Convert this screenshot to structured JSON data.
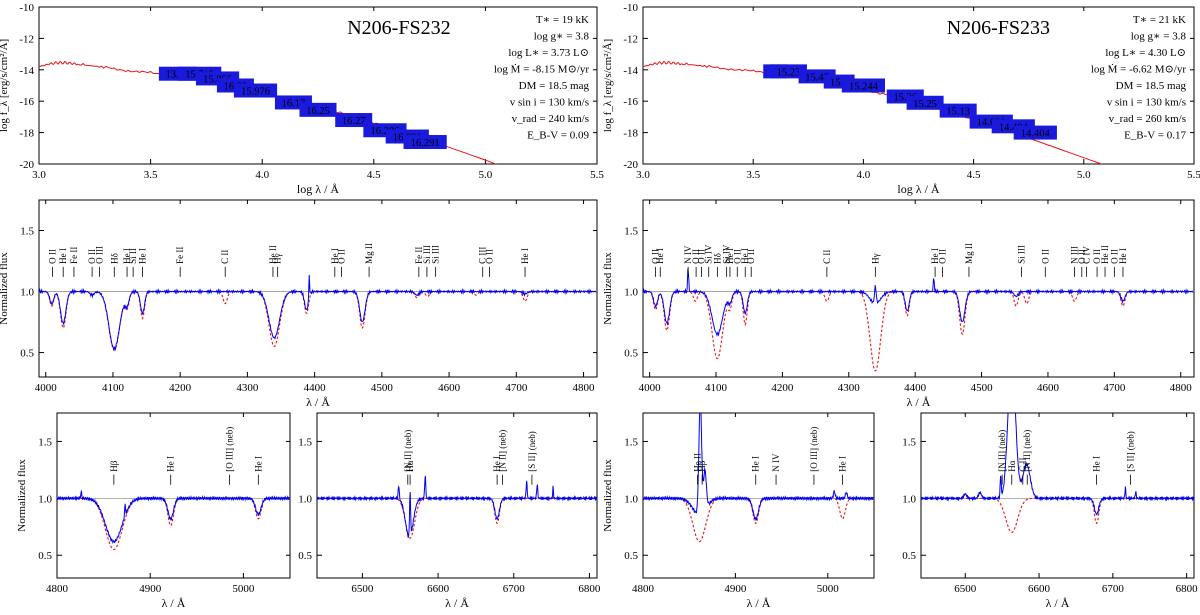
{
  "colors": {
    "observed": "#0000ee",
    "model": "#e8141a",
    "frame": "#000000",
    "unit_line": "#999999",
    "badge_fill": "#1a1adc",
    "badge_text": "#ffffff"
  },
  "chart_data": [
    {
      "id": "sed-fs232",
      "type": "line",
      "title": "N206-FS232",
      "xlabel": "log λ / Å",
      "ylabel": "log f_λ [erg/s/cm²/Å]",
      "xlim": [
        3.0,
        5.5
      ],
      "ylim": [
        -20,
        -10
      ],
      "xticks": [
        3.0,
        3.5,
        4.0,
        4.5,
        5.0,
        5.5
      ],
      "yticks": [
        -20,
        -18,
        -16,
        -14,
        -12,
        -10
      ],
      "params": [
        "T∗ = 19 kK",
        "log g∗ = 3.8",
        "log L∗ = 3.73 L⊙",
        "log Ṁ = -8.15 M⊙/yr",
        "DM = 18.5 mag",
        "v sin i = 130 km/s",
        "v_rad = 240 km/s",
        "E_B-V = 0.09"
      ],
      "model_sed": [
        [
          3.0,
          -13.8
        ],
        [
          3.04,
          -13.65
        ],
        [
          3.08,
          -13.55
        ],
        [
          3.12,
          -13.55
        ],
        [
          3.16,
          -13.62
        ],
        [
          3.22,
          -13.72
        ],
        [
          3.3,
          -13.85
        ],
        [
          3.4,
          -14.05
        ],
        [
          3.5,
          -14.2
        ],
        [
          3.6,
          -14.45
        ],
        [
          3.7,
          -14.68
        ],
        [
          3.8,
          -14.95
        ],
        [
          3.9,
          -15.22
        ],
        [
          4.0,
          -15.55
        ],
        [
          4.1,
          -15.85
        ],
        [
          4.2,
          -16.2
        ],
        [
          4.3,
          -16.55
        ],
        [
          4.4,
          -16.95
        ],
        [
          4.5,
          -17.35
        ],
        [
          4.6,
          -17.8
        ],
        [
          4.7,
          -18.25
        ],
        [
          4.8,
          -18.75
        ],
        [
          4.9,
          -19.25
        ],
        [
          5.0,
          -19.75
        ],
        [
          5.1,
          -20.3
        ]
      ],
      "photometry": [
        {
          "logl": 3.62,
          "val": -14.25,
          "label": "13.73"
        },
        {
          "logl": 3.72,
          "val": -14.25,
          "label": "15.715"
        },
        {
          "logl": 3.8,
          "val": -14.55,
          "label": "15.855"
        },
        {
          "logl": 3.88,
          "val": -15.0,
          "label": "16.22"
        },
        {
          "logl": 3.97,
          "val": -15.32,
          "label": "15.976"
        },
        {
          "logl": 4.14,
          "val": -16.08,
          "label": "16.17"
        },
        {
          "logl": 4.25,
          "val": -16.55,
          "label": "16.25"
        },
        {
          "logl": 4.41,
          "val": -17.2,
          "label": "16.27"
        },
        {
          "logl": 4.55,
          "val": -17.85,
          "label": "16.286"
        },
        {
          "logl": 4.65,
          "val": -18.25,
          "label": "16.291"
        },
        {
          "logl": 4.73,
          "val": -18.6,
          "label": "16.291"
        }
      ]
    },
    {
      "id": "sed-fs233",
      "type": "line",
      "title": "N206-FS233",
      "xlabel": "log λ / Å",
      "ylabel": "log f_λ [erg/s/cm²/Å]",
      "xlim": [
        3.0,
        5.5
      ],
      "ylim": [
        -20,
        -10
      ],
      "xticks": [
        3.0,
        3.5,
        4.0,
        4.5,
        5.0,
        5.5
      ],
      "yticks": [
        -20,
        -18,
        -16,
        -14,
        -12,
        -10
      ],
      "params": [
        "T∗ = 21 kK",
        "log g∗ = 3.8",
        "log L∗ = 4.30 L⊙",
        "log Ṁ = -6.62 M⊙/yr",
        "DM = 18.5 mag",
        "v sin i = 130 km/s",
        "v_rad = 260 km/s",
        "E_B-V = 0.17"
      ],
      "model_sed": [
        [
          3.0,
          -13.8
        ],
        [
          3.04,
          -13.65
        ],
        [
          3.08,
          -13.55
        ],
        [
          3.12,
          -13.55
        ],
        [
          3.16,
          -13.6
        ],
        [
          3.22,
          -13.68
        ],
        [
          3.3,
          -13.8
        ],
        [
          3.4,
          -13.95
        ],
        [
          3.5,
          -14.1
        ],
        [
          3.6,
          -14.28
        ],
        [
          3.7,
          -14.45
        ],
        [
          3.8,
          -14.68
        ],
        [
          3.9,
          -14.95
        ],
        [
          4.0,
          -15.25
        ],
        [
          4.1,
          -15.55
        ],
        [
          4.2,
          -15.9
        ],
        [
          4.3,
          -16.3
        ],
        [
          4.4,
          -16.7
        ],
        [
          4.5,
          -17.15
        ],
        [
          4.6,
          -17.6
        ],
        [
          4.7,
          -18.1
        ],
        [
          4.8,
          -18.6
        ],
        [
          4.9,
          -19.1
        ],
        [
          5.0,
          -19.6
        ],
        [
          5.1,
          -20.1
        ],
        [
          5.2,
          -20.6
        ]
      ],
      "photometry": [
        {
          "logl": 3.6,
          "val": -14.1,
          "label": "14"
        },
        {
          "logl": 3.66,
          "val": -14.1,
          "label": "15.23"
        },
        {
          "logl": 3.79,
          "val": -14.42,
          "label": "15.45"
        },
        {
          "logl": 3.89,
          "val": -14.75,
          "label": "15.5"
        },
        {
          "logl": 4.0,
          "val": -15.0,
          "label": "15.244"
        },
        {
          "logl": 4.19,
          "val": -15.7,
          "label": "15.26"
        },
        {
          "logl": 4.28,
          "val": -16.1,
          "label": "15.25"
        },
        {
          "logl": 4.43,
          "val": -16.6,
          "label": "15.13"
        },
        {
          "logl": 4.58,
          "val": -17.3,
          "label": "14.631"
        },
        {
          "logl": 4.68,
          "val": -17.6,
          "label": "14.404"
        },
        {
          "logl": 4.78,
          "val": -18.0,
          "label": "14.404"
        }
      ]
    },
    {
      "id": "blue-fs232",
      "type": "line",
      "xlabel": "λ / Å",
      "ylabel": "Normalized flux",
      "xlim": [
        3990,
        4820
      ],
      "ylim": [
        0.3,
        1.75
      ],
      "xticks": [
        4000,
        4100,
        4200,
        4300,
        4400,
        4500,
        4600,
        4700,
        4800
      ],
      "yticks": [
        0.5,
        1.0,
        1.5
      ],
      "lines_model": [
        [
          4009,
          0.12,
          3
        ],
        [
          4026,
          0.3,
          4
        ],
        [
          4069,
          0.03,
          3
        ],
        [
          4102,
          0.48,
          8
        ],
        [
          4121,
          0.12,
          3
        ],
        [
          4144,
          0.22,
          3
        ],
        [
          4267,
          0.1,
          3
        ],
        [
          4340,
          0.45,
          8
        ],
        [
          4388,
          0.18,
          3
        ],
        [
          4471,
          0.3,
          4
        ],
        [
          4552,
          0.05,
          3
        ],
        [
          4568,
          0.04,
          3
        ],
        [
          4640,
          0.03,
          3
        ],
        [
          4713,
          0.08,
          3
        ]
      ],
      "lines_obs": [
        [
          4009,
          0.1,
          3
        ],
        [
          4026,
          0.26,
          4
        ],
        [
          4069,
          0.03,
          3
        ],
        [
          4102,
          0.47,
          8
        ],
        [
          4121,
          0.1,
          3
        ],
        [
          4144,
          0.18,
          3
        ],
        [
          4340,
          0.38,
          8
        ],
        [
          4388,
          0.15,
          3
        ],
        [
          4471,
          0.25,
          4
        ],
        [
          4552,
          0.03,
          3
        ],
        [
          4713,
          0.02,
          3
        ]
      ],
      "emission_obs": [
        [
          4392,
          0.2,
          0.6
        ]
      ],
      "ids": [
        {
          "x": 4010,
          "t": "O II"
        },
        {
          "x": 4026,
          "t": "He I"
        },
        {
          "x": 4042,
          "t": "Fe II"
        },
        {
          "x": 4069,
          "t": "O II"
        },
        {
          "x": 4080,
          "t": "O III"
        },
        {
          "x": 4102,
          "t": "Hδ"
        },
        {
          "x": 4121,
          "t": "He I"
        },
        {
          "x": 4130,
          "t": "Si II"
        },
        {
          "x": 4144,
          "t": "He I"
        },
        {
          "x": 4200,
          "t": "Fe II"
        },
        {
          "x": 4267,
          "t": "C II"
        },
        {
          "x": 4338,
          "t": "He II"
        },
        {
          "x": 4345,
          "t": "Hγ"
        },
        {
          "x": 4430,
          "t": "He I"
        },
        {
          "x": 4440,
          "t": "O II"
        },
        {
          "x": 4481,
          "t": "Mg II"
        },
        {
          "x": 4555,
          "t": "Fe II"
        },
        {
          "x": 4567,
          "t": "Si III"
        },
        {
          "x": 4580,
          "t": "Si III"
        },
        {
          "x": 4650,
          "t": "C III"
        },
        {
          "x": 4660,
          "t": "O II"
        },
        {
          "x": 4713,
          "t": "He I"
        }
      ]
    },
    {
      "id": "blue-fs233",
      "type": "line",
      "xlabel": "λ / Å",
      "ylabel": "Normalized flux",
      "xlim": [
        3990,
        4820
      ],
      "ylim": [
        0.3,
        1.75
      ],
      "xticks": [
        4000,
        4100,
        4200,
        4300,
        4400,
        4500,
        4600,
        4700,
        4800
      ],
      "yticks": [
        0.5,
        1.0,
        1.5
      ],
      "lines_model": [
        [
          4009,
          0.15,
          3
        ],
        [
          4026,
          0.32,
          4
        ],
        [
          4069,
          0.08,
          3
        ],
        [
          4102,
          0.55,
          8
        ],
        [
          4121,
          0.12,
          3
        ],
        [
          4144,
          0.27,
          3
        ],
        [
          4267,
          0.08,
          3
        ],
        [
          4340,
          0.65,
          8
        ],
        [
          4388,
          0.2,
          3
        ],
        [
          4471,
          0.35,
          4
        ],
        [
          4552,
          0.12,
          3
        ],
        [
          4568,
          0.1,
          3
        ],
        [
          4640,
          0.08,
          3
        ],
        [
          4713,
          0.12,
          3
        ]
      ],
      "lines_obs": [
        [
          4009,
          0.12,
          3
        ],
        [
          4026,
          0.26,
          4
        ],
        [
          4102,
          0.35,
          8
        ],
        [
          4121,
          0.08,
          3
        ],
        [
          4144,
          0.18,
          3
        ],
        [
          4340,
          0.1,
          8
        ],
        [
          4388,
          0.16,
          3
        ],
        [
          4471,
          0.25,
          4
        ],
        [
          4552,
          0.04,
          3
        ],
        [
          4713,
          0.08,
          3
        ]
      ],
      "emission_obs": [
        [
          4058,
          0.25,
          0.6
        ],
        [
          4340,
          0.15,
          1.2
        ],
        [
          4428,
          0.15,
          0.6
        ]
      ],
      "ids": [
        {
          "x": 4009,
          "t": "O II"
        },
        {
          "x": 4016,
          "t": "He I"
        },
        {
          "x": 4058,
          "t": "N IV"
        },
        {
          "x": 4070,
          "t": "O II"
        },
        {
          "x": 4078,
          "t": "O II"
        },
        {
          "x": 4089,
          "t": "Si IV"
        },
        {
          "x": 4102,
          "t": "Hδ"
        },
        {
          "x": 4116,
          "t": "Si IV"
        },
        {
          "x": 4121,
          "t": "He I"
        },
        {
          "x": 4132,
          "t": "O II"
        },
        {
          "x": 4144,
          "t": "He I"
        },
        {
          "x": 4153,
          "t": "O II"
        },
        {
          "x": 4267,
          "t": "C II"
        },
        {
          "x": 4340,
          "t": "Hγ"
        },
        {
          "x": 4430,
          "t": "He I"
        },
        {
          "x": 4441,
          "t": "O II"
        },
        {
          "x": 4481,
          "t": "Mg II"
        },
        {
          "x": 4560,
          "t": "Si III"
        },
        {
          "x": 4596,
          "t": "O II"
        },
        {
          "x": 4640,
          "t": "N III"
        },
        {
          "x": 4651,
          "t": "O II"
        },
        {
          "x": 4658,
          "t": "C IV"
        },
        {
          "x": 4674,
          "t": "O II"
        },
        {
          "x": 4686,
          "t": "He II"
        },
        {
          "x": 4700,
          "t": "O II"
        },
        {
          "x": 4713,
          "t": "He I"
        }
      ]
    },
    {
      "id": "hb-fs232",
      "type": "line",
      "xlabel": "λ / Å",
      "ylabel": "Normalized flux",
      "xlim": [
        4800,
        5050
      ],
      "ylim": [
        0.3,
        1.75
      ],
      "xticks": [
        4800,
        4900,
        5000
      ],
      "yticks": [
        0.5,
        1.0,
        1.5
      ],
      "lines_model": [
        [
          4861,
          0.45,
          9
        ],
        [
          4922,
          0.24,
          3
        ],
        [
          5016,
          0.18,
          3
        ]
      ],
      "lines_obs": [
        [
          4861,
          0.38,
          9
        ],
        [
          4922,
          0.18,
          3
        ],
        [
          5016,
          0.14,
          3
        ]
      ],
      "emission_obs": [
        [
          4826,
          0.06,
          0.5
        ],
        [
          4873,
          0.1,
          0.5
        ]
      ],
      "ids": [
        {
          "x": 4861,
          "t": "Hβ"
        },
        {
          "x": 4922,
          "t": "He I"
        },
        {
          "x": 4985,
          "t": "[O III] (neb)"
        },
        {
          "x": 5016,
          "t": "He I"
        }
      ]
    },
    {
      "id": "ha-fs232",
      "type": "line",
      "xlabel": "λ / Å",
      "ylabel": "",
      "xlim": [
        6440,
        6810
      ],
      "ylim": [
        0.3,
        1.75
      ],
      "xticks": [
        6500,
        6600,
        6700,
        6800
      ],
      "yticks": [
        0.5,
        1.0,
        1.5
      ],
      "lines_model": [
        [
          6563,
          0.35,
          6
        ],
        [
          6678,
          0.22,
          3
        ]
      ],
      "lines_obs": [
        [
          6562,
          0.35,
          5
        ],
        [
          6678,
          0.18,
          3
        ]
      ],
      "emission_obs": [
        [
          6548,
          0.12,
          0.7
        ],
        [
          6563,
          0.4,
          0.7
        ],
        [
          6583,
          0.2,
          0.7
        ],
        [
          6717,
          0.15,
          0.7
        ],
        [
          6731,
          0.12,
          0.7
        ],
        [
          6752,
          0.1,
          0.5
        ]
      ],
      "ids": [
        {
          "x": 6560,
          "t": "[N II] (neb)"
        },
        {
          "x": 6563,
          "t": "Hα"
        },
        {
          "x": 6678,
          "t": "He I"
        },
        {
          "x": 6685,
          "t": "[N II] (neb)"
        },
        {
          "x": 6724,
          "t": "[S II] (neb)"
        }
      ]
    },
    {
      "id": "hb-fs233",
      "type": "line",
      "xlabel": "λ / Å",
      "ylabel": "Normalized flux",
      "xlim": [
        4800,
        5050
      ],
      "ylim": [
        0.3,
        1.75
      ],
      "xticks": [
        4800,
        4900,
        5000
      ],
      "yticks": [
        0.5,
        1.0,
        1.5
      ],
      "lines_model": [
        [
          4861,
          0.38,
          7
        ],
        [
          4922,
          0.22,
          3
        ],
        [
          5016,
          0.18,
          3
        ]
      ],
      "lines_obs": [
        [
          4861,
          0.15,
          7
        ],
        [
          4922,
          0.18,
          3
        ]
      ],
      "emission_obs": [
        [
          4862,
          1.0,
          1.5
        ],
        [
          4867,
          0.35,
          1.5
        ],
        [
          5007,
          0.06,
          1.0
        ],
        [
          5020,
          0.05,
          1.0
        ]
      ],
      "ids": [
        {
          "x": 4859,
          "t": "He II"
        },
        {
          "x": 4864,
          "t": "Hβ"
        },
        {
          "x": 4922,
          "t": "He I"
        },
        {
          "x": 4944,
          "t": "N IV"
        },
        {
          "x": 4985,
          "t": "[O III] (neb)"
        },
        {
          "x": 5016,
          "t": "He I"
        }
      ]
    },
    {
      "id": "ha-fs233",
      "type": "line",
      "xlabel": "λ / Å",
      "ylabel": "",
      "xlim": [
        6440,
        6810
      ],
      "ylim": [
        0.3,
        1.75
      ],
      "xticks": [
        6500,
        6600,
        6700,
        6800
      ],
      "yticks": [
        0.5,
        1.0,
        1.5
      ],
      "lines_model": [
        [
          6563,
          0.3,
          8
        ],
        [
          6678,
          0.22,
          3
        ]
      ],
      "lines_obs": [
        [
          6678,
          0.14,
          3
        ]
      ],
      "emission_obs": [
        [
          6563,
          1.25,
          5
        ],
        [
          6583,
          0.3,
          5
        ],
        [
          6548,
          0.2,
          0.7
        ],
        [
          6520,
          0.05,
          2
        ],
        [
          6500,
          0.04,
          2
        ],
        [
          6717,
          0.1,
          0.6
        ],
        [
          6731,
          0.06,
          0.6
        ]
      ],
      "ids": [
        {
          "x": 6550,
          "t": "[N II] (neb)"
        },
        {
          "x": 6563,
          "t": "Hα"
        },
        {
          "x": 6578,
          "t": "C II"
        },
        {
          "x": 6584,
          "t": "[N II] (neb)"
        },
        {
          "x": 6678,
          "t": "He I"
        },
        {
          "x": 6724,
          "t": "[S II] (neb)"
        }
      ]
    }
  ]
}
